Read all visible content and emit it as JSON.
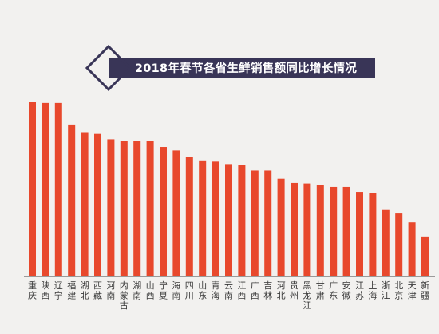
{
  "colors": {
    "bar": "#e8482c",
    "title_bg": "#393557",
    "title_border": "#393557",
    "axis": "#9a9a9a"
  },
  "chart_data": {
    "type": "bar",
    "title": "2018年春节各省生鲜销售额同比增长情况",
    "xlabel": "",
    "ylabel": "",
    "ylim": [
      0,
      100
    ],
    "categories": [
      "重庆",
      "陕西",
      "辽宁",
      "福建",
      "湖北",
      "西藏",
      "河南",
      "内蒙古",
      "湖南",
      "山西",
      "宁夏",
      "海南",
      "四川",
      "山东",
      "青海",
      "云南",
      "江西",
      "广西",
      "吉林",
      "河北",
      "贵州",
      "黑龙江",
      "甘肃",
      "广东",
      "安徽",
      "江苏",
      "上海",
      "浙江",
      "北京",
      "天津",
      "新疆"
    ],
    "values": [
      100,
      99.6,
      99.6,
      87.2,
      82.8,
      81.8,
      78.7,
      77.7,
      77.7,
      77.7,
      74.3,
      72.3,
      68.6,
      66.6,
      65.9,
      64.5,
      63.9,
      60.8,
      60.8,
      56.1,
      53.7,
      53.4,
      52.4,
      51.4,
      51.4,
      48.6,
      48.0,
      38.2,
      36.2,
      31.1,
      23.0
    ]
  }
}
